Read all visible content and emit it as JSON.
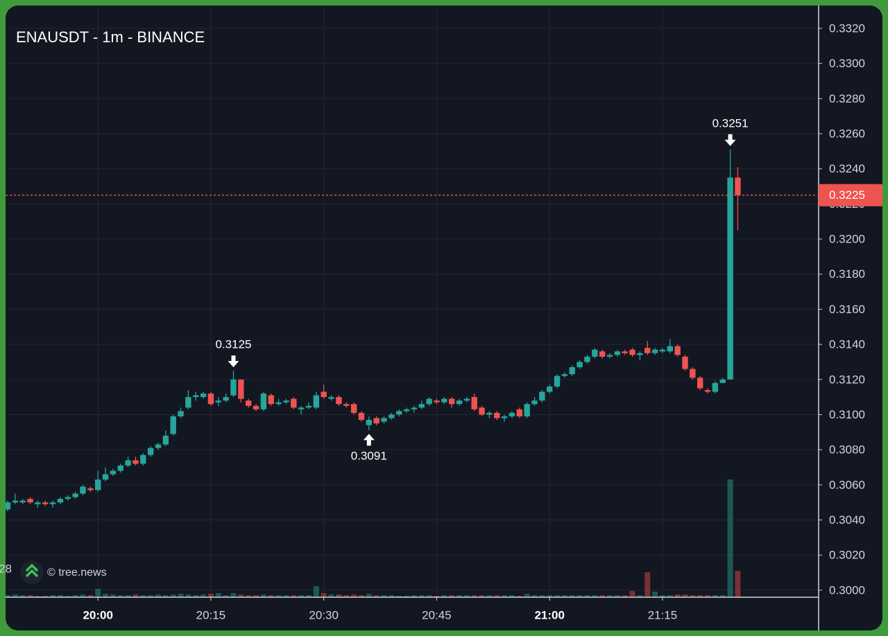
{
  "chart_data": {
    "type": "candlestick",
    "title": "ENAUSDT - 1m - BINANCE",
    "clipped_label": "28",
    "watermark": "© tree.news",
    "up_color": "#26a69a",
    "down_color": "#ef5350",
    "x": [
      "19:48",
      "19:49",
      "19:50",
      "19:51",
      "19:52",
      "19:53",
      "19:54",
      "19:55",
      "19:56",
      "19:57",
      "19:58",
      "19:59",
      "20:00",
      "20:01",
      "20:02",
      "20:03",
      "20:04",
      "20:05",
      "20:06",
      "20:07",
      "20:08",
      "20:09",
      "20:10",
      "20:11",
      "20:12",
      "20:13",
      "20:14",
      "20:15",
      "20:16",
      "20:17",
      "20:18",
      "20:19",
      "20:20",
      "20:21",
      "20:22",
      "20:23",
      "20:24",
      "20:25",
      "20:26",
      "20:27",
      "20:28",
      "20:29",
      "20:30",
      "20:31",
      "20:32",
      "20:33",
      "20:34",
      "20:35",
      "20:36",
      "20:37",
      "20:38",
      "20:39",
      "20:40",
      "20:41",
      "20:42",
      "20:43",
      "20:44",
      "20:45",
      "20:46",
      "20:47",
      "20:48",
      "20:49",
      "20:50",
      "20:51",
      "20:52",
      "20:53",
      "20:54",
      "20:55",
      "20:56",
      "20:57",
      "20:58",
      "20:59",
      "21:00",
      "21:01",
      "21:02",
      "21:03",
      "21:04",
      "21:05",
      "21:06",
      "21:07",
      "21:08",
      "21:09",
      "21:10",
      "21:11",
      "21:12",
      "21:13",
      "21:14",
      "21:15",
      "21:16",
      "21:17",
      "21:18",
      "21:19",
      "21:20",
      "21:21",
      "21:22",
      "21:23",
      "21:24",
      "21:25"
    ],
    "open": [
      0.3046,
      0.305,
      0.305,
      0.3052,
      0.3049,
      0.305,
      0.3049,
      0.305,
      0.3052,
      0.3053,
      0.3055,
      0.3058,
      0.3057,
      0.3063,
      0.3066,
      0.3068,
      0.3071,
      0.3074,
      0.3072,
      0.3077,
      0.3081,
      0.3083,
      0.3089,
      0.3099,
      0.3104,
      0.311,
      0.311,
      0.3112,
      0.3107,
      0.3108,
      0.3111,
      0.312,
      0.3108,
      0.3105,
      0.3103,
      0.3111,
      0.3106,
      0.3107,
      0.3109,
      0.3103,
      0.3104,
      0.3104,
      0.3113,
      0.3109,
      0.311,
      0.3106,
      0.3106,
      0.3101,
      0.3094,
      0.3098,
      0.3096,
      0.3098,
      0.31,
      0.3102,
      0.3103,
      0.3104,
      0.3106,
      0.3108,
      0.3107,
      0.3109,
      0.3106,
      0.3108,
      0.311,
      0.3104,
      0.31,
      0.3101,
      0.3098,
      0.3099,
      0.3103,
      0.3099,
      0.3106,
      0.3108,
      0.3113,
      0.3116,
      0.3122,
      0.3123,
      0.3127,
      0.313,
      0.3133,
      0.3136,
      0.3133,
      0.3134,
      0.3136,
      0.3137,
      0.3134,
      0.3138,
      0.3135,
      0.3136,
      0.3136,
      0.3139,
      0.3133,
      0.3126,
      0.3121,
      0.3114,
      0.3113,
      0.3118,
      0.312,
      0.3235
    ],
    "high": [
      0.3051,
      0.3055,
      0.3052,
      0.3053,
      0.3051,
      0.3051,
      0.3051,
      0.3053,
      0.3054,
      0.3056,
      0.306,
      0.3059,
      0.3068,
      0.307,
      0.3069,
      0.3072,
      0.3076,
      0.3076,
      0.3078,
      0.3082,
      0.3084,
      0.3091,
      0.31,
      0.3104,
      0.3114,
      0.3113,
      0.3113,
      0.3113,
      0.311,
      0.3112,
      0.3125,
      0.312,
      0.3109,
      0.3106,
      0.3113,
      0.3112,
      0.3109,
      0.3109,
      0.311,
      0.3105,
      0.3107,
      0.3113,
      0.3117,
      0.3111,
      0.3111,
      0.3107,
      0.3107,
      0.3102,
      0.3099,
      0.3099,
      0.3099,
      0.3101,
      0.3103,
      0.3104,
      0.3105,
      0.3108,
      0.311,
      0.3109,
      0.311,
      0.311,
      0.3109,
      0.311,
      0.3112,
      0.3105,
      0.3102,
      0.3102,
      0.31,
      0.3102,
      0.3104,
      0.3107,
      0.311,
      0.3114,
      0.3117,
      0.3123,
      0.3124,
      0.3128,
      0.3131,
      0.3134,
      0.3138,
      0.3137,
      0.3135,
      0.3137,
      0.3137,
      0.3138,
      0.3136,
      0.3142,
      0.3138,
      0.3138,
      0.3143,
      0.314,
      0.3134,
      0.3127,
      0.3122,
      0.3115,
      0.3119,
      0.3121,
      0.3251,
      0.3241
    ],
    "low": [
      0.3045,
      0.3049,
      0.3049,
      0.3049,
      0.3047,
      0.3048,
      0.3047,
      0.3049,
      0.3051,
      0.3052,
      0.3054,
      0.3056,
      0.3056,
      0.3062,
      0.3065,
      0.3067,
      0.307,
      0.3071,
      0.3071,
      0.3076,
      0.308,
      0.3082,
      0.3088,
      0.3098,
      0.3103,
      0.3108,
      0.3109,
      0.3105,
      0.3105,
      0.3107,
      0.311,
      0.3107,
      0.3104,
      0.3102,
      0.3102,
      0.3105,
      0.3105,
      0.3106,
      0.3103,
      0.31,
      0.3103,
      0.3103,
      0.3109,
      0.3108,
      0.3105,
      0.3104,
      0.31,
      0.3096,
      0.3091,
      0.3094,
      0.3095,
      0.3097,
      0.3099,
      0.3101,
      0.3101,
      0.3103,
      0.3105,
      0.3106,
      0.3106,
      0.3104,
      0.3105,
      0.3107,
      0.3102,
      0.3099,
      0.3098,
      0.3097,
      0.3096,
      0.3098,
      0.3098,
      0.3098,
      0.3105,
      0.3107,
      0.3112,
      0.3115,
      0.3121,
      0.3122,
      0.3126,
      0.3129,
      0.3132,
      0.3132,
      0.3132,
      0.3133,
      0.3134,
      0.3133,
      0.3131,
      0.3134,
      0.3134,
      0.3135,
      0.3135,
      0.3133,
      0.3125,
      0.312,
      0.3114,
      0.3112,
      0.3112,
      0.3119,
      0.312,
      0.3205
    ],
    "close": [
      0.305,
      0.3051,
      0.3051,
      0.305,
      0.305,
      0.3049,
      0.305,
      0.3052,
      0.3053,
      0.3055,
      0.3059,
      0.3057,
      0.3063,
      0.3066,
      0.3068,
      0.3071,
      0.3074,
      0.3072,
      0.3077,
      0.3081,
      0.3083,
      0.3088,
      0.3099,
      0.3102,
      0.311,
      0.3111,
      0.3112,
      0.3106,
      0.3108,
      0.311,
      0.312,
      0.3109,
      0.3105,
      0.3103,
      0.3112,
      0.3106,
      0.3107,
      0.3108,
      0.3104,
      0.3104,
      0.3105,
      0.3111,
      0.311,
      0.311,
      0.3106,
      0.3105,
      0.3101,
      0.3097,
      0.3097,
      0.3095,
      0.3098,
      0.31,
      0.3102,
      0.3103,
      0.3104,
      0.3106,
      0.3109,
      0.3107,
      0.3109,
      0.3106,
      0.3108,
      0.3109,
      0.3103,
      0.31,
      0.3101,
      0.3098,
      0.3099,
      0.3101,
      0.3099,
      0.3106,
      0.3108,
      0.3113,
      0.3116,
      0.3122,
      0.3123,
      0.3127,
      0.313,
      0.3133,
      0.3137,
      0.3133,
      0.3134,
      0.3136,
      0.3135,
      0.3134,
      0.3135,
      0.3135,
      0.3137,
      0.3137,
      0.3139,
      0.3134,
      0.3126,
      0.3121,
      0.3115,
      0.3113,
      0.3118,
      0.312,
      0.3235,
      0.3225
    ],
    "volume": [
      3,
      4,
      3,
      3,
      2,
      2,
      3,
      3,
      2,
      3,
      4,
      3,
      12,
      5,
      4,
      3,
      3,
      4,
      3,
      3,
      4,
      3,
      4,
      5,
      4,
      3,
      4,
      5,
      6,
      3,
      6,
      4,
      3,
      3,
      4,
      3,
      3,
      3,
      3,
      3,
      3,
      16,
      6,
      4,
      4,
      3,
      4,
      3,
      5,
      3,
      3,
      3,
      2,
      2,
      3,
      3,
      3,
      2,
      3,
      3,
      3,
      3,
      3,
      3,
      3,
      3,
      3,
      3,
      2,
      5,
      3,
      3,
      3,
      3,
      3,
      3,
      3,
      3,
      3,
      3,
      3,
      3,
      3,
      9,
      3,
      36,
      8,
      3,
      3,
      4,
      4,
      3,
      3,
      3,
      3,
      3,
      170,
      38
    ],
    "last_price": 0.3225,
    "annotations": [
      {
        "x": "21:24",
        "value": 0.3251,
        "direction": "down"
      },
      {
        "x": "20:18",
        "value": 0.3125,
        "direction": "down"
      },
      {
        "x": "20:36",
        "value": 0.3091,
        "direction": "up"
      }
    ],
    "ylim": [
      0.2996,
      0.3333
    ],
    "yticks": [
      {
        "value": 0.3,
        "label": "0.3000"
      },
      {
        "value": 0.302,
        "label": "0.3020"
      },
      {
        "value": 0.304,
        "label": "0.3040"
      },
      {
        "value": 0.306,
        "label": "0.3060"
      },
      {
        "value": 0.308,
        "label": "0.3080"
      },
      {
        "value": 0.31,
        "label": "0.3100"
      },
      {
        "value": 0.312,
        "label": "0.3120"
      },
      {
        "value": 0.314,
        "label": "0.3140"
      },
      {
        "value": 0.316,
        "label": "0.3160"
      },
      {
        "value": 0.318,
        "label": "0.3180"
      },
      {
        "value": 0.32,
        "label": "0.3200"
      },
      {
        "value": 0.322,
        "label": "0.3220"
      },
      {
        "value": 0.324,
        "label": "0.3240"
      },
      {
        "value": 0.326,
        "label": "0.3260"
      },
      {
        "value": 0.328,
        "label": "0.3280"
      },
      {
        "value": 0.33,
        "label": "0.3300"
      },
      {
        "value": 0.332,
        "label": "0.3320"
      }
    ],
    "xticks": [
      "20:00",
      "20:15",
      "20:30",
      "20:45",
      "21:00",
      "21:15"
    ],
    "grid": true
  }
}
